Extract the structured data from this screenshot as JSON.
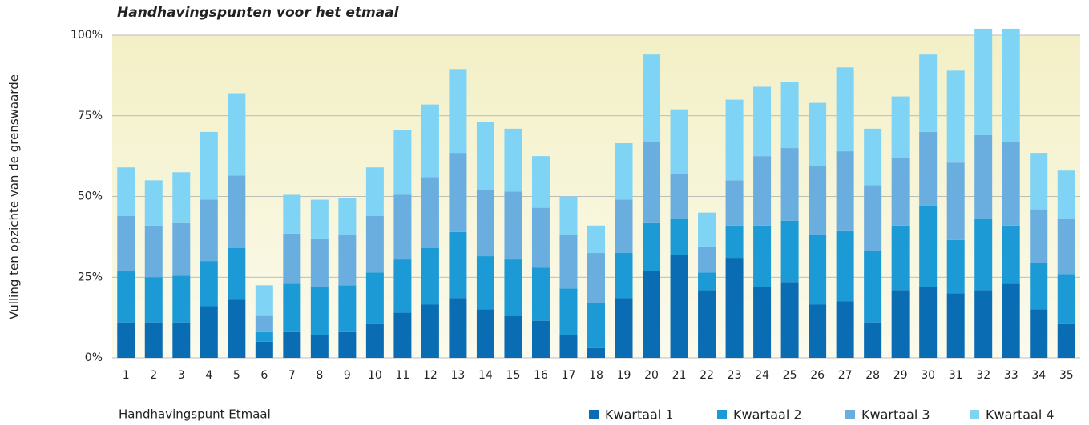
{
  "chart_data": {
    "type": "stacked_bar",
    "title": "Handhavingspunten voor het etmaal",
    "x_label": "Handhavingspunt Etmaal",
    "y_label": "Vulling ten opzichte van de grenswaarde",
    "categories": [
      "1",
      "2",
      "3",
      "4",
      "5",
      "6",
      "7",
      "8",
      "9",
      "10",
      "11",
      "12",
      "13",
      "14",
      "15",
      "16",
      "17",
      "18",
      "19",
      "20",
      "21",
      "22",
      "23",
      "24",
      "25",
      "26",
      "27",
      "28",
      "29",
      "30",
      "31",
      "32",
      "33",
      "34",
      "35"
    ],
    "series": [
      {
        "name": "Kwartaal 1",
        "color": "#0a6db3",
        "values": [
          11,
          11,
          11,
          16,
          18,
          5,
          8,
          7,
          8,
          10.5,
          14,
          16.5,
          18.5,
          15,
          13,
          11.5,
          7,
          3,
          18.5,
          27,
          32,
          21,
          31,
          22,
          23.5,
          16.5,
          17.5,
          11,
          21,
          22,
          20,
          21,
          23,
          15,
          10.5
        ]
      },
      {
        "name": "Kwartaal 2",
        "color": "#1b9ad6",
        "values": [
          16,
          14,
          14.5,
          14,
          16,
          3,
          15,
          15,
          14.5,
          16,
          16.5,
          17.5,
          20.5,
          16.5,
          17.5,
          16.5,
          14.5,
          14,
          14,
          15,
          11,
          5.5,
          10,
          19,
          19,
          21.5,
          22,
          22,
          20,
          25,
          16.5,
          22,
          18,
          14.5,
          15.5
        ]
      },
      {
        "name": "Kwartaal 3",
        "color": "#6aaee0",
        "values": [
          17,
          16,
          16.5,
          19,
          22.5,
          5,
          15.5,
          15,
          15.5,
          17.5,
          20,
          22,
          24.5,
          20.5,
          21,
          18.5,
          16.5,
          15.5,
          16.5,
          25,
          14,
          8,
          14,
          21.5,
          22.5,
          21.5,
          24.5,
          20.5,
          21,
          23,
          24,
          26,
          26,
          16.5,
          17
        ]
      },
      {
        "name": "Kwartaal 4",
        "color": "#7fd3f4",
        "values": [
          15,
          14,
          15.5,
          21,
          25.5,
          9.5,
          12,
          12,
          11.5,
          15,
          20,
          22.5,
          26,
          21,
          19.5,
          16,
          12,
          8.5,
          17.5,
          27,
          20,
          10.5,
          25,
          21.5,
          20.5,
          19.5,
          26,
          17.5,
          19,
          24,
          28.5,
          33,
          35,
          17.5,
          15
        ]
      }
    ],
    "ylim": [
      0,
      100
    ],
    "yticks": [
      {
        "value": 0,
        "label": "0%"
      },
      {
        "value": 25,
        "label": "25%"
      },
      {
        "value": 50,
        "label": "50%"
      },
      {
        "value": 75,
        "label": "75%"
      },
      {
        "value": 100,
        "label": "100%"
      }
    ],
    "grid": true
  }
}
